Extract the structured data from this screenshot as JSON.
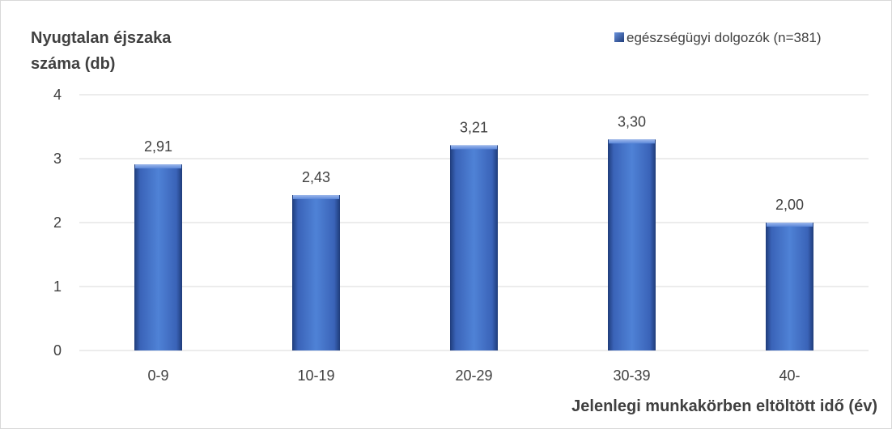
{
  "chart_data": {
    "type": "bar",
    "title": "",
    "ylabel_lines": [
      "Nyugtalan éjszaka",
      "száma (db)"
    ],
    "xlabel": "Jelenlegi munkakörben eltöltött idő (év)",
    "categories": [
      "0-9",
      "10-19",
      "20-29",
      "30-39",
      "40-"
    ],
    "series": [
      {
        "name": "egészségügyi dolgozók (n=381)",
        "values": [
          2.91,
          2.43,
          3.21,
          3.3,
          2.0
        ],
        "value_labels": [
          "2,91",
          "2,43",
          "3,21",
          "3,30",
          "2,00"
        ],
        "color": "#4472C4"
      }
    ],
    "ylim": [
      0,
      4
    ],
    "yticks": [
      0,
      1,
      2,
      3,
      4
    ],
    "grid": true,
    "legend_position": "top-right"
  }
}
